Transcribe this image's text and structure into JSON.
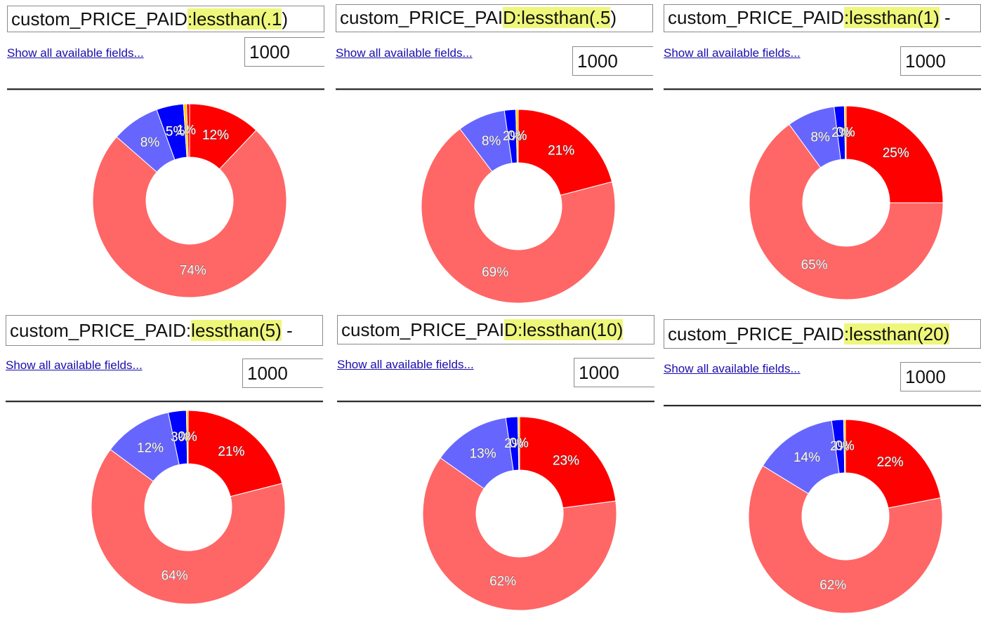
{
  "common": {
    "fields_link": "Show all available fields...",
    "limit_value": "1000"
  },
  "palette": {
    "light_red": "#ff6666",
    "red": "#ff0000",
    "light_blue": "#6666ff",
    "blue": "#0000ff",
    "yellow": "#ffcc00"
  },
  "panels": [
    {
      "query_prefix": "custom_PRICE_PAID",
      "query_highlight": ":lessthan(.1",
      "query_suffix": ")"
    },
    {
      "query_prefix": "custom_PRICE_PAI",
      "query_highlight": "D:lessthan(.5",
      "query_suffix": ")"
    },
    {
      "query_prefix": "custom_PRICE_PAID",
      "query_highlight": ":lessthan(1)",
      "query_suffix": " -"
    },
    {
      "query_prefix": "custom_PRICE_PAID:",
      "query_highlight": "lessthan(5)",
      "query_suffix": " -"
    },
    {
      "query_prefix": "custom_PRICE_PAI",
      "query_highlight": "D:lessthan(10)",
      "query_suffix": ""
    },
    {
      "query_prefix": "custom_PRICE_PAID",
      "query_highlight": ":lessthan(20)",
      "query_suffix": ""
    }
  ],
  "chart_data": [
    {
      "type": "pie",
      "slices": [
        {
          "value": 12,
          "label": "12%",
          "color": "#ff0000"
        },
        {
          "value": 74,
          "label": "74%",
          "color": "#ff6666"
        },
        {
          "value": 8,
          "label": "8%",
          "color": "#6666ff"
        },
        {
          "value": 4.5,
          "label": "5%",
          "color": "#0000ff"
        },
        {
          "value": 0.5,
          "label": "1%",
          "color": "#ffcc00"
        },
        {
          "value": 0.5,
          "label": "",
          "color": "#ff0000"
        }
      ]
    },
    {
      "type": "pie",
      "slices": [
        {
          "value": 21,
          "label": "21%",
          "color": "#ff0000"
        },
        {
          "value": 69,
          "label": "69%",
          "color": "#ff6666"
        },
        {
          "value": 8,
          "label": "8%",
          "color": "#6666ff"
        },
        {
          "value": 1.9,
          "label": "2%",
          "color": "#0000ff"
        },
        {
          "value": 0.4,
          "label": "0%",
          "color": "#ffcc00"
        }
      ]
    },
    {
      "type": "pie",
      "slices": [
        {
          "value": 25,
          "label": "25%",
          "color": "#ff0000"
        },
        {
          "value": 65,
          "label": "65%",
          "color": "#ff6666"
        },
        {
          "value": 8,
          "label": "8%",
          "color": "#6666ff"
        },
        {
          "value": 1.7,
          "label": "2%",
          "color": "#0000ff"
        },
        {
          "value": 0.3,
          "label": "0%",
          "color": "#ffcc00"
        }
      ]
    },
    {
      "type": "pie",
      "slices": [
        {
          "value": 21,
          "label": "21%",
          "color": "#ff0000"
        },
        {
          "value": 64,
          "label": "64%",
          "color": "#ff6666"
        },
        {
          "value": 11.5,
          "label": "12%",
          "color": "#6666ff"
        },
        {
          "value": 3,
          "label": "3%",
          "color": "#0000ff"
        },
        {
          "value": 0.3,
          "label": "0%",
          "color": "#ffcc00"
        }
      ]
    },
    {
      "type": "pie",
      "slices": [
        {
          "value": 23,
          "label": "23%",
          "color": "#ff0000"
        },
        {
          "value": 62,
          "label": "62%",
          "color": "#ff6666"
        },
        {
          "value": 13,
          "label": "13%",
          "color": "#6666ff"
        },
        {
          "value": 2,
          "label": "2%",
          "color": "#0000ff"
        },
        {
          "value": 0.3,
          "label": "0%",
          "color": "#ffcc00"
        }
      ]
    },
    {
      "type": "pie",
      "slices": [
        {
          "value": 22,
          "label": "22%",
          "color": "#ff0000"
        },
        {
          "value": 62,
          "label": "62%",
          "color": "#ff6666"
        },
        {
          "value": 14,
          "label": "14%",
          "color": "#6666ff"
        },
        {
          "value": 2,
          "label": "2%",
          "color": "#0000ff"
        },
        {
          "value": 0.3,
          "label": "0%",
          "color": "#ffcc00"
        }
      ]
    }
  ]
}
